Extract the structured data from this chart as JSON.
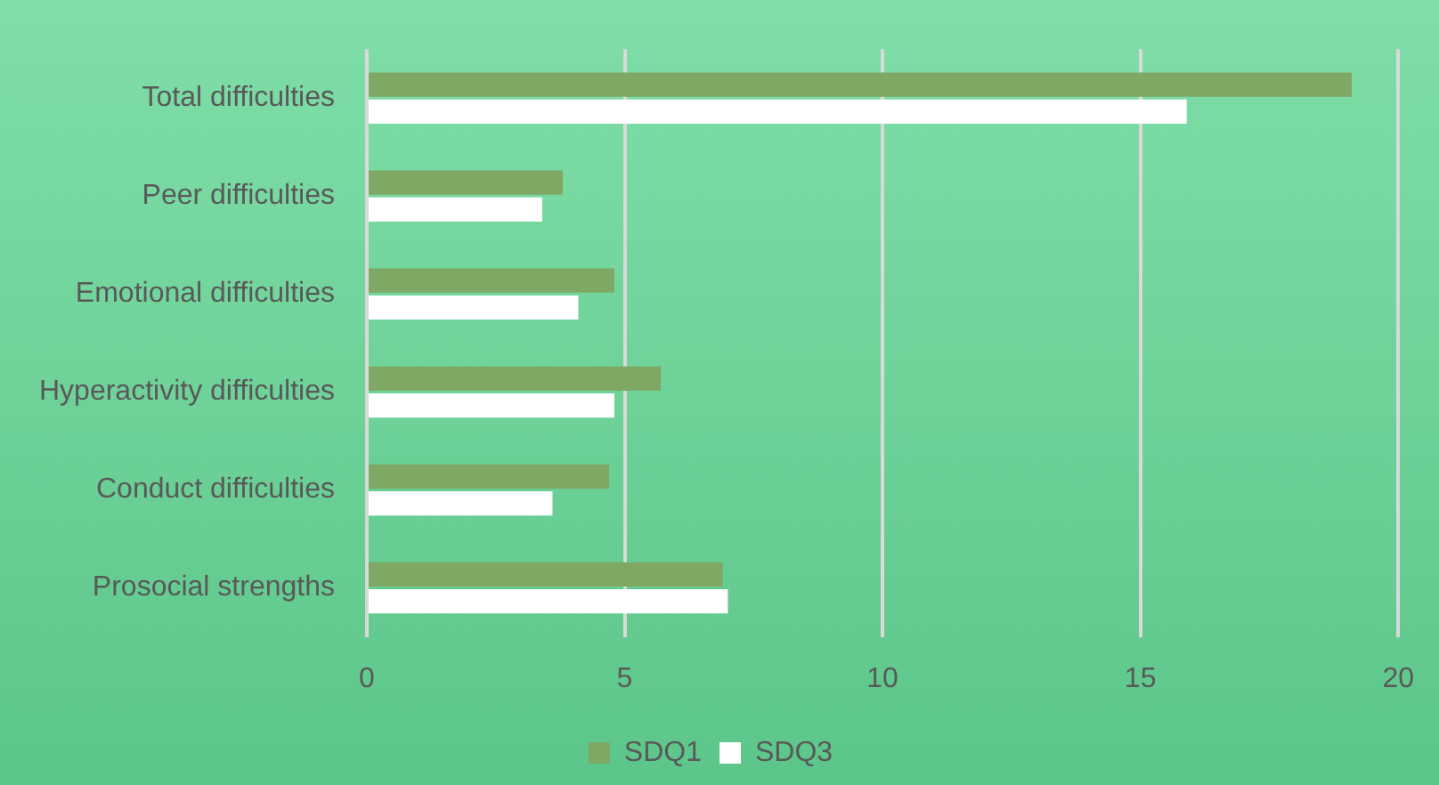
{
  "chart_data": {
    "type": "bar",
    "orientation": "horizontal",
    "categories": [
      "Total difficulties",
      "Peer difficulties",
      "Emotional difficulties",
      "Hyperactivity difficulties",
      "Conduct difficulties",
      "Prosocial strengths"
    ],
    "series": [
      {
        "name": "SDQ1",
        "color": "#7fa865",
        "values": [
          19.1,
          3.8,
          4.8,
          5.7,
          4.7,
          6.9
        ]
      },
      {
        "name": "SDQ3",
        "color": "#ffffff",
        "values": [
          15.9,
          3.4,
          4.1,
          4.8,
          3.6,
          7.0
        ]
      }
    ],
    "xlim": [
      0,
      20
    ],
    "xticks": [
      0,
      5,
      10,
      15,
      20
    ],
    "grid": "x",
    "legend": "bottom"
  }
}
